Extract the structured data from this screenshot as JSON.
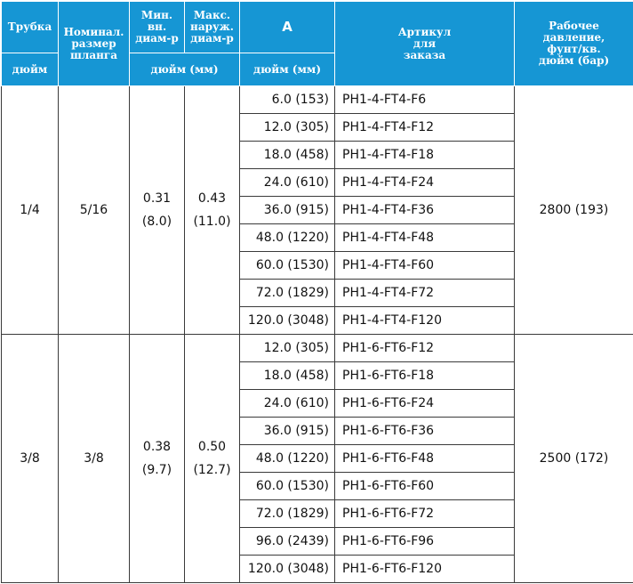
{
  "header": {
    "tube": "Трубка",
    "tube_unit": "дюйм",
    "nominal": [
      "Номинал.",
      "размер",
      "шланга"
    ],
    "min_id": [
      "Мин.",
      "вн.",
      "диам-р"
    ],
    "max_od": [
      "Макс.",
      "наруж.",
      "диам-р"
    ],
    "diam_unit": "дюйм (мм)",
    "a": "A",
    "a_unit": "дюйм (мм)",
    "part": [
      "Артикул",
      "для",
      "заказа"
    ],
    "pressure": [
      "Рабочее",
      "давление,",
      "фунт/кв.",
      "дюйм (бар)"
    ]
  },
  "groups": [
    {
      "tube": "1/4",
      "nominal": "5/16",
      "min_id": [
        "0.31",
        "(8.0)"
      ],
      "max_od": [
        "0.43",
        "(11.0)"
      ],
      "pressure": "2800 (193)",
      "rows": [
        {
          "a": "6.0 (153)",
          "part": "PH1-4-FT4-F6"
        },
        {
          "a": "12.0 (305)",
          "part": "PH1-4-FT4-F12"
        },
        {
          "a": "18.0 (458)",
          "part": "PH1-4-FT4-F18"
        },
        {
          "a": "24.0 (610)",
          "part": "PH1-4-FT4-F24"
        },
        {
          "a": "36.0 (915)",
          "part": "PH1-4-FT4-F36"
        },
        {
          "a": "48.0 (1220)",
          "part": "PH1-4-FT4-F48"
        },
        {
          "a": "60.0 (1530)",
          "part": "PH1-4-FT4-F60"
        },
        {
          "a": "72.0 (1829)",
          "part": "PH1-4-FT4-F72"
        },
        {
          "a": "120.0 (3048)",
          "part": "PH1-4-FT4-F120"
        }
      ]
    },
    {
      "tube": "3/8",
      "nominal": "3/8",
      "min_id": [
        "0.38",
        "(9.7)"
      ],
      "max_od": [
        "0.50",
        "(12.7)"
      ],
      "pressure": "2500 (172)",
      "rows": [
        {
          "a": "12.0 (305)",
          "part": "PH1-6-FT6-F12"
        },
        {
          "a": "18.0 (458)",
          "part": "PH1-6-FT6-F18"
        },
        {
          "a": "24.0 (610)",
          "part": "PH1-6-FT6-F24"
        },
        {
          "a": "36.0 (915)",
          "part": "PH1-6-FT6-F36"
        },
        {
          "a": "48.0 (1220)",
          "part": "PH1-6-FT6-F48"
        },
        {
          "a": "60.0 (1530)",
          "part": "PH1-6-FT6-F60"
        },
        {
          "a": "72.0 (1829)",
          "part": "PH1-6-FT6-F72"
        },
        {
          "a": "96.0 (2439)",
          "part": "PH1-6-FT6-F96"
        },
        {
          "a": "120.0 (3048)",
          "part": "PH1-6-FT6-F120"
        }
      ]
    }
  ]
}
